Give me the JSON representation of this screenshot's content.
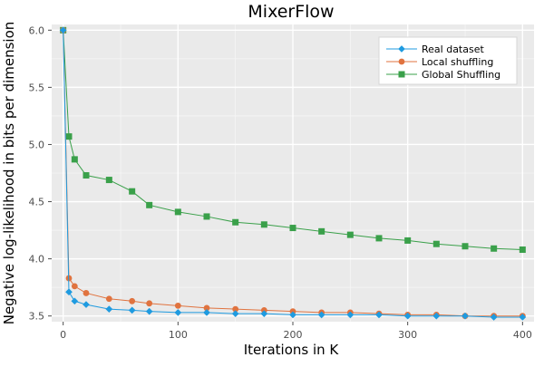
{
  "chart_data": {
    "type": "line",
    "title": "MixerFlow",
    "xlabel": "Iterations in K",
    "ylabel": "Negative log-likelihood in bits per dimension",
    "xlim": [
      -10,
      410
    ],
    "ylim": [
      3.45,
      6.05
    ],
    "xticks": [
      0,
      100,
      200,
      300,
      400
    ],
    "xtick_labels": [
      "0",
      "100",
      "200",
      "300",
      "400"
    ],
    "yticks": [
      3.5,
      4.0,
      4.5,
      5.0,
      5.5,
      6.0
    ],
    "ytick_labels": [
      "3.5",
      "4.0",
      "4.5",
      "5.0",
      "5.5",
      "6.0"
    ],
    "grid": true,
    "legend_position": "top-right",
    "series": [
      {
        "name": "Real dataset",
        "color": "#1f9be0",
        "marker": "diamond",
        "x": [
          0,
          5,
          10,
          20,
          40,
          60,
          75,
          100,
          125,
          150,
          175,
          200,
          225,
          250,
          275,
          300,
          325,
          350,
          375,
          400
        ],
        "y": [
          6.0,
          3.71,
          3.63,
          3.6,
          3.56,
          3.55,
          3.54,
          3.53,
          3.53,
          3.52,
          3.52,
          3.51,
          3.51,
          3.51,
          3.51,
          3.5,
          3.5,
          3.5,
          3.49,
          3.49
        ]
      },
      {
        "name": "Local shuffling",
        "color": "#e0733f",
        "marker": "circle",
        "x": [
          0,
          5,
          10,
          20,
          40,
          60,
          75,
          100,
          125,
          150,
          175,
          200,
          225,
          250,
          275,
          300,
          325,
          350,
          375,
          400
        ],
        "y": [
          6.0,
          3.83,
          3.76,
          3.7,
          3.65,
          3.63,
          3.61,
          3.59,
          3.57,
          3.56,
          3.55,
          3.54,
          3.53,
          3.53,
          3.52,
          3.51,
          3.51,
          3.5,
          3.5,
          3.5
        ]
      },
      {
        "name": "Global Shuffling",
        "color": "#3aa04a",
        "marker": "square",
        "x": [
          0,
          5,
          10,
          20,
          40,
          60,
          75,
          100,
          125,
          150,
          175,
          200,
          225,
          250,
          275,
          300,
          325,
          350,
          375,
          400
        ],
        "y": [
          6.0,
          5.07,
          4.87,
          4.73,
          4.69,
          4.59,
          4.47,
          4.41,
          4.37,
          4.32,
          4.3,
          4.27,
          4.24,
          4.21,
          4.18,
          4.16,
          4.13,
          4.11,
          4.09,
          4.08
        ]
      }
    ]
  }
}
